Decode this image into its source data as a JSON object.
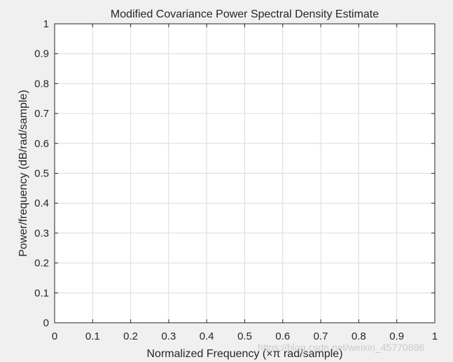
{
  "chart_data": {
    "type": "line",
    "title": "Modified Covariance Power Spectral Density Estimate",
    "xlabel": "Normalized Frequency  (×π rad/sample)",
    "ylabel": "Power/frequency (dB/rad/sample)",
    "xlim": [
      0,
      1
    ],
    "ylim": [
      0,
      1
    ],
    "xticks": [
      "0",
      "0.1",
      "0.2",
      "0.3",
      "0.4",
      "0.5",
      "0.6",
      "0.7",
      "0.8",
      "0.9",
      "1"
    ],
    "yticks": [
      "0",
      "0.1",
      "0.2",
      "0.3",
      "0.4",
      "0.5",
      "0.6",
      "0.7",
      "0.8",
      "0.9",
      "1"
    ],
    "grid": true,
    "series": []
  },
  "watermark": "https://blog.csdn.net/weixin_45770896",
  "colors": {
    "figure_background": "#f0f0f0",
    "axes_background": "#ffffff",
    "axes_edge": "#262626",
    "grid": "#dcdcdc",
    "text": "#262626"
  }
}
